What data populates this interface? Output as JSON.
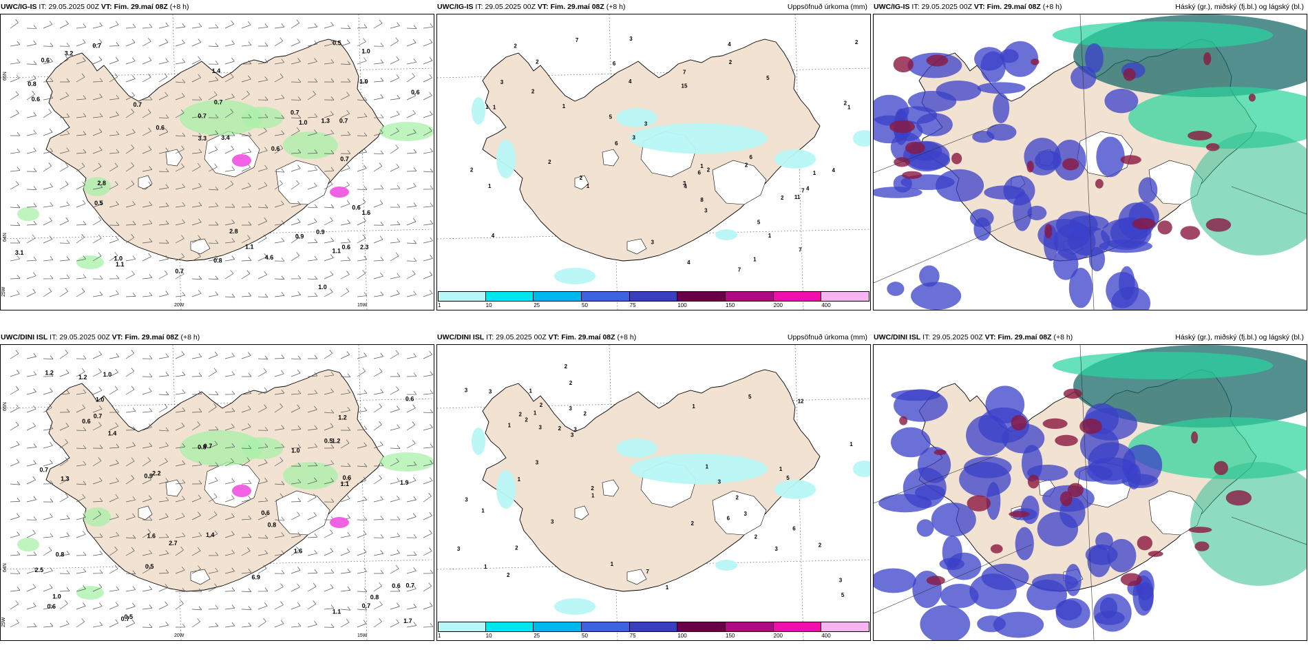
{
  "panels": [
    {
      "model": "UWC/IG-IS",
      "it_label": "IT:",
      "it_value": "29.05.2025 00Z",
      "vt_label": "VT:",
      "vt_value": "Fim. 29.maí 08Z",
      "lead": "(+8 h)",
      "right_label": "",
      "kind": "wind",
      "values": [
        "1.4",
        "0.6",
        "0.6",
        "0.5",
        "3.2",
        "3.1",
        "1.0",
        "1.3",
        "0.7",
        "0.5",
        "0.6",
        "0.6",
        "0.8",
        "0.9",
        "1.0",
        "0.7",
        "0.7",
        "1.1",
        "1.6",
        "0.8",
        "0.6",
        "1.0",
        "0.7",
        "1.0",
        "1.0",
        "0.6",
        "0.7",
        "1.1",
        "0.6",
        "0.7",
        "1.1",
        "4.6",
        "2.3",
        "2.8",
        "3.3",
        "2.8",
        "3.4",
        "0.7",
        "0.9",
        "0.7"
      ],
      "axes": [
        "20W",
        "15W",
        "25W",
        "65N",
        "64N"
      ]
    },
    {
      "model": "UWC/IG-IS",
      "it_label": "IT:",
      "it_value": "29.05.2025 00Z",
      "vt_label": "VT:",
      "vt_value": "Fim. 29.maí 08Z",
      "lead": "(+8 h)",
      "right_label": "Uppsöfnuð úrkoma (mm)",
      "kind": "precip",
      "values": [
        "1",
        "4",
        "2",
        "4",
        "7",
        "2",
        "1",
        "4",
        "5",
        "6",
        "2",
        "3",
        "1",
        "6",
        "4",
        "1",
        "3",
        "4",
        "6",
        "5",
        "3",
        "2",
        "3",
        "1",
        "2",
        "2",
        "1",
        "7",
        "2",
        "2",
        "5",
        "2",
        "4",
        "7",
        "6",
        "8",
        "4",
        "7",
        "11",
        "15",
        "2",
        "3",
        "7",
        "1",
        "1",
        "3",
        "2",
        "3",
        "2",
        "1",
        "1"
      ],
      "axes": []
    },
    {
      "model": "UWC/IG-IS",
      "it_label": "IT:",
      "it_value": "29.05.2025 00Z",
      "vt_label": "VT:",
      "vt_value": "Fim. 29.maí 08Z",
      "lead": "(+8 h)",
      "right_label": "Háský (gr.), miðský (fj.bl.) og lágský (bl.)",
      "kind": "cloud",
      "values": [],
      "axes": []
    },
    {
      "model": "UWC/DINI ISL",
      "it_label": "IT:",
      "it_value": "29.05.2025 00Z",
      "vt_label": "VT:",
      "vt_value": "Fim. 29.maí 08Z",
      "lead": "(+8 h)",
      "right_label": "",
      "kind": "wind",
      "values": [
        "1.0",
        "0.8",
        "0.7",
        "1.2",
        "2.2",
        "0.6",
        "0.5",
        "0.6",
        "0.6",
        "0.8",
        "0.6",
        "0.5",
        "1.1",
        "0.8",
        "0.6",
        "0.5",
        "0.6",
        "0.8",
        "0.9",
        "1.3",
        "1.2",
        "0.7",
        "0.7",
        "1.6",
        "6.9",
        "1.0",
        "1.7",
        "1.2",
        "1.9",
        "1.4",
        "0.7",
        "1.0",
        "0.7",
        "1.0",
        "1.6",
        "2.5",
        "0.7",
        "1.1",
        "1.2",
        "1.4",
        "2.7"
      ],
      "axes": [
        "20W",
        "15W",
        "25W",
        "65N",
        "64N"
      ]
    },
    {
      "model": "UWC/DINI ISL",
      "it_label": "IT:",
      "it_value": "29.05.2025 00Z",
      "vt_label": "VT:",
      "vt_value": "Fim. 29.maí 08Z",
      "lead": "(+8 h)",
      "right_label": "Uppsöfnuð úrkoma (mm)",
      "kind": "precip",
      "values": [
        "3",
        "2",
        "3",
        "3",
        "3",
        "1",
        "1",
        "1",
        "2",
        "1",
        "2",
        "2",
        "1",
        "1",
        "3",
        "2",
        "1",
        "3",
        "2",
        "2",
        "3",
        "3",
        "2",
        "2",
        "2",
        "5",
        "6",
        "6",
        "5",
        "12",
        "3",
        "2",
        "2",
        "3",
        "5",
        "7",
        "2",
        "3",
        "1",
        "1",
        "1",
        "3",
        "3",
        "1",
        "1",
        "3",
        "1",
        "2"
      ],
      "axes": []
    },
    {
      "model": "UWC/DINI ISL",
      "it_label": "IT:",
      "it_value": "29.05.2025 00Z",
      "vt_label": "VT:",
      "vt_value": "Fim. 29.maí 08Z",
      "lead": "(+8 h)",
      "right_label": "Háský (gr.), miðský (fj.bl.) og lágský (bl.)",
      "kind": "cloud",
      "values": [],
      "axes": []
    }
  ],
  "colorbar": {
    "ticks": [
      "1",
      "10",
      "25",
      "50",
      "75",
      "100",
      "150",
      "200",
      "400"
    ],
    "colors": [
      "#b8f7f7",
      "#00e6ee",
      "#00b8ee",
      "#3f63e0",
      "#3a3fc0",
      "#6a0048",
      "#b00a80",
      "#ee10a8",
      "#f6b4f0"
    ]
  },
  "colors": {
    "land": "#f2e2d2",
    "coast": "#000000",
    "precip_light": "#b8f7f7",
    "wind_green": "#a8f0a8",
    "high_cloud": "#1a6a6a",
    "mid_cloud": "#3a40c8",
    "low_cloud": "#8a1840"
  }
}
